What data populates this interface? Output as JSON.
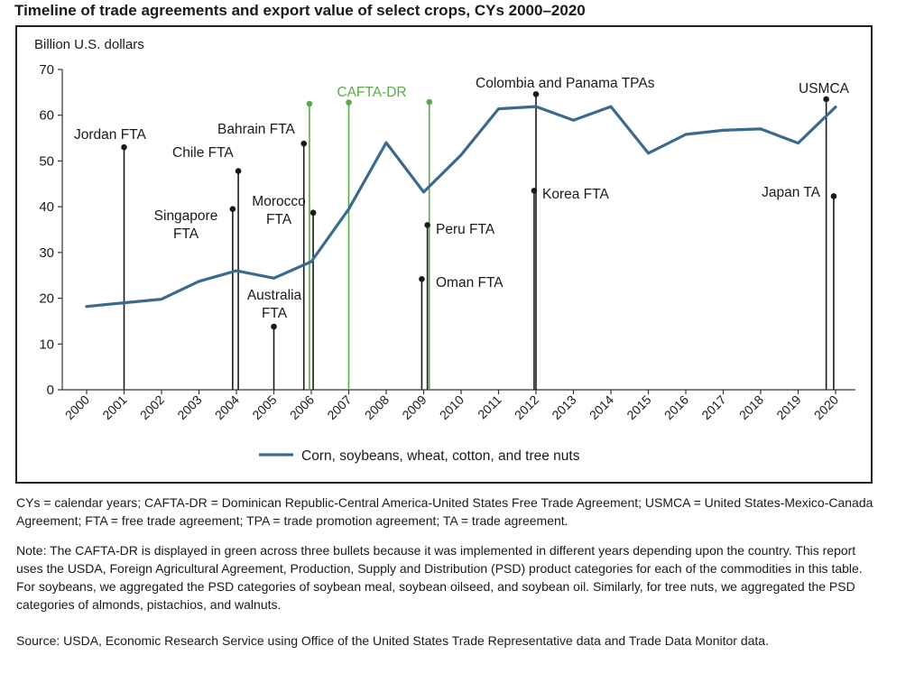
{
  "title": "Timeline of trade agreements and export value of select crops, CYs 2000–2020",
  "footnotes": {
    "abbreviations": "CYs = calendar years; CAFTA-DR = Dominican Republic-Central America-United States Free Trade Agreement; USMCA = United States-Mexico-Canada Agreement; FTA = free trade agreement; TPA = trade promotion agreement; TA = trade agreement.",
    "note": "Note: The CAFTA-DR is displayed in green across three bullets because it was implemented in different years depending upon the country. This report uses the USDA, Foreign Agricultural Agreement, Production, Supply and Distribution (PSD) product categories for each of the commodities in this table. For soybeans, we aggregated the PSD categories of soybean meal, soybean oilseed, and soybean oil. Similarly, for tree nuts, we aggregated the PSD categories of almonds, pistachios, and walnuts.",
    "source": "Source: USDA, Economic Research Service using Office of the United States Trade Representative data and Trade Data Monitor data."
  },
  "chart_data": {
    "type": "line",
    "ylabel": "Billion U.S. dollars",
    "xlabel": "",
    "ylim": [
      0,
      70
    ],
    "yticks": [
      0,
      10,
      20,
      30,
      40,
      50,
      60,
      70
    ],
    "x": [
      "2000",
      "2001",
      "2002",
      "2003",
      "2004",
      "2005",
      "2006",
      "2007",
      "2008",
      "2009",
      "2010",
      "2011",
      "2012",
      "2013",
      "2014",
      "2015",
      "2016",
      "2017",
      "2018",
      "2019",
      "2020"
    ],
    "series": [
      {
        "name": "Corn, soybeans, wheat, cotton, and tree nuts",
        "color": "#3a6b8c",
        "values": [
          18.2,
          19.0,
          19.8,
          23.7,
          26.0,
          24.4,
          28.0,
          39.5,
          54.0,
          43.2,
          51.3,
          61.4,
          61.9,
          58.9,
          61.9,
          51.7,
          55.8,
          56.7,
          57.0,
          53.9,
          61.8
        ]
      }
    ],
    "legend_position": "bottom",
    "grid": false,
    "agreement_markers": [
      {
        "label": "Jordan FTA",
        "year": 2001.0,
        "height": 53,
        "color": "#1a1a1a"
      },
      {
        "label": "Singapore FTA",
        "year": 2003.9,
        "height": 39.5,
        "color": "#1a1a1a"
      },
      {
        "label": "Chile FTA",
        "year": 2004.05,
        "height": 47.8,
        "color": "#1a1a1a"
      },
      {
        "label": "Australia FTA",
        "year": 2005.0,
        "height": 13.8,
        "color": "#1a1a1a"
      },
      {
        "label": "Bahrain FTA",
        "year": 2005.8,
        "height": 53.8,
        "color": "#1a1a1a"
      },
      {
        "label": "Morocco FTA",
        "year": 2006.05,
        "height": 38.7,
        "color": "#1a1a1a"
      },
      {
        "label": "CAFTA-DR",
        "year": 2005.95,
        "height": 62.5,
        "color": "#5aaa4a"
      },
      {
        "label": "CAFTA-DR",
        "year": 2007.0,
        "height": 62.8,
        "color": "#5aaa4a"
      },
      {
        "label": "CAFTA-DR",
        "year": 2009.15,
        "height": 62.9,
        "color": "#5aaa4a"
      },
      {
        "label": "Oman FTA",
        "year": 2008.95,
        "height": 24.2,
        "color": "#1a1a1a"
      },
      {
        "label": "Peru FTA",
        "year": 2009.1,
        "height": 36.0,
        "color": "#1a1a1a"
      },
      {
        "label": "Korea FTA",
        "year": 2011.95,
        "height": 43.5,
        "color": "#1a1a1a"
      },
      {
        "label": "Colombia and Panama TPAs",
        "year": 2012.0,
        "height": 64.6,
        "color": "#1a1a1a"
      },
      {
        "label": "USMCA",
        "year": 2019.75,
        "height": 63.5,
        "color": "#1a1a1a"
      },
      {
        "label": "Japan TA",
        "year": 2019.95,
        "height": 42.3,
        "color": "#1a1a1a"
      }
    ],
    "annotation_labels": [
      {
        "text": "Jordan FTA",
        "for": "Jordan FTA"
      },
      {
        "text": "Singapore",
        "for": "Singapore FTA"
      },
      {
        "text": "FTA",
        "for": "Singapore FTA"
      },
      {
        "text": "Chile FTA",
        "for": "Chile FTA"
      },
      {
        "text": "Australia",
        "for": "Australia FTA"
      },
      {
        "text": "FTA",
        "for": "Australia FTA"
      },
      {
        "text": "Bahrain FTA",
        "for": "Bahrain FTA"
      },
      {
        "text": "Morocco",
        "for": "Morocco FTA"
      },
      {
        "text": "FTA",
        "for": "Morocco FTA"
      },
      {
        "text": "CAFTA-DR",
        "for": "CAFTA-DR"
      },
      {
        "text": "Oman FTA",
        "for": "Oman FTA"
      },
      {
        "text": "Peru FTA",
        "for": "Peru FTA"
      },
      {
        "text": "Korea FTA",
        "for": "Korea FTA"
      },
      {
        "text": "Colombia and Panama TPAs",
        "for": "Colombia and Panama TPAs"
      },
      {
        "text": "USMCA",
        "for": "USMCA"
      },
      {
        "text": "Japan TA",
        "for": "Japan TA"
      }
    ]
  }
}
